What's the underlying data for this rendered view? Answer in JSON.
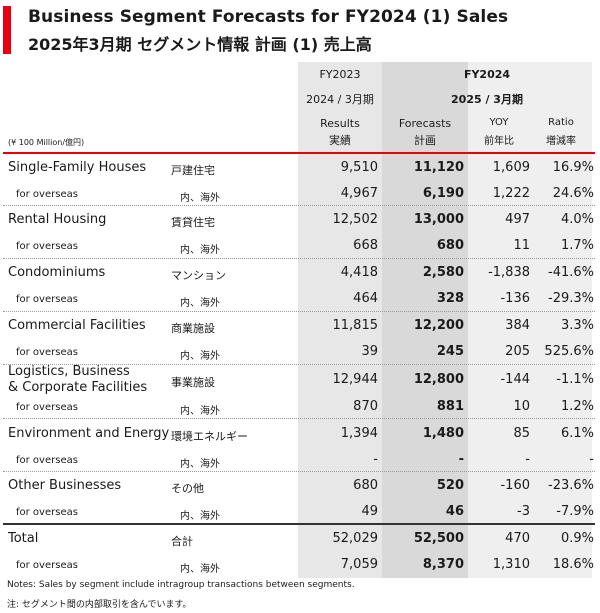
{
  "title": {
    "en": "Business Segment Forecasts for FY2024 (1) Sales",
    "jp": "2025年3月期 セグメント情報 計画 (1) 売上高"
  },
  "header": {
    "fy2023": "FY2023",
    "fy2023_date": "2024 / 3月期",
    "fy2024": "FY2024",
    "fy2024_date": "2025 / 3月期",
    "results_en": "Results",
    "results_jp": "実績",
    "forecasts_en": "Forecasts",
    "forecasts_jp": "計画",
    "yoy_en": "YOY",
    "yoy_jp": "前年比",
    "ratio_en": "Ratio",
    "ratio_jp": "増減率",
    "unit": "(¥ 100 Million/億円)"
  },
  "rows": [
    {
      "en": "Single-Family Houses",
      "jp": "戸建住宅",
      "results": "9,510",
      "forecast": "11,120",
      "yoy": "1,609",
      "ratio": "16.9%"
    },
    {
      "en": "for overseas",
      "jp": "内、海外",
      "results": "4,967",
      "forecast": "6,190",
      "yoy": "1,222",
      "ratio": "24.6%"
    },
    {
      "en": "Rental Housing",
      "jp": "賃貸住宅",
      "results": "12,502",
      "forecast": "13,000",
      "yoy": "497",
      "ratio": "4.0%"
    },
    {
      "en": "for overseas",
      "jp": "内、海外",
      "results": "668",
      "forecast": "680",
      "yoy": "11",
      "ratio": "1.7%"
    },
    {
      "en": "Condominiums",
      "jp": "マンション",
      "results": "4,418",
      "forecast": "2,580",
      "yoy": "-1,838",
      "ratio": "-41.6%"
    },
    {
      "en": "for overseas",
      "jp": "内、海外",
      "results": "464",
      "forecast": "328",
      "yoy": "-136",
      "ratio": "-29.3%"
    },
    {
      "en": "Commercial Facilities",
      "jp": "商業施設",
      "results": "11,815",
      "forecast": "12,200",
      "yoy": "384",
      "ratio": "3.3%"
    },
    {
      "en": "for overseas",
      "jp": "内、海外",
      "results": "39",
      "forecast": "245",
      "yoy": "205",
      "ratio": "525.6%"
    },
    {
      "en": "Logistics, Business",
      "en2": "& Corporate Facilities",
      "jp": "事業施設",
      "results": "12,944",
      "forecast": "12,800",
      "yoy": "-144",
      "ratio": "-1.1%"
    },
    {
      "en": "for overseas",
      "jp": "内、海外",
      "results": "870",
      "forecast": "881",
      "yoy": "10",
      "ratio": "1.2%"
    },
    {
      "en": "Environment and Energy",
      "jp": "環境エネルギー",
      "results": "1,394",
      "forecast": "1,480",
      "yoy": "85",
      "ratio": "6.1%"
    },
    {
      "en": "for overseas",
      "jp": "内、海外",
      "results": "-",
      "forecast": "-",
      "yoy": "-",
      "ratio": "-"
    },
    {
      "en": "Other Businesses",
      "jp": "その他",
      "results": "680",
      "forecast": "520",
      "yoy": "-160",
      "ratio": "-23.6%"
    },
    {
      "en": "for overseas",
      "jp": "内、海外",
      "results": "49",
      "forecast": "46",
      "yoy": "-3",
      "ratio": "-7.9%"
    },
    {
      "en": "Total",
      "jp": "合計",
      "results": "52,029",
      "forecast": "52,500",
      "yoy": "470",
      "ratio": "0.9%"
    },
    {
      "en": "for overseas",
      "jp": "内、海外",
      "results": "7,059",
      "forecast": "8,370",
      "yoy": "1,310",
      "ratio": "18.6%"
    }
  ],
  "notes": {
    "en": "Notes: Sales by segment include intragroup transactions between segments.",
    "jp": "注: セグメント間の内部取引を含んでいます。"
  },
  "colors": {
    "accent": "#e60012"
  }
}
